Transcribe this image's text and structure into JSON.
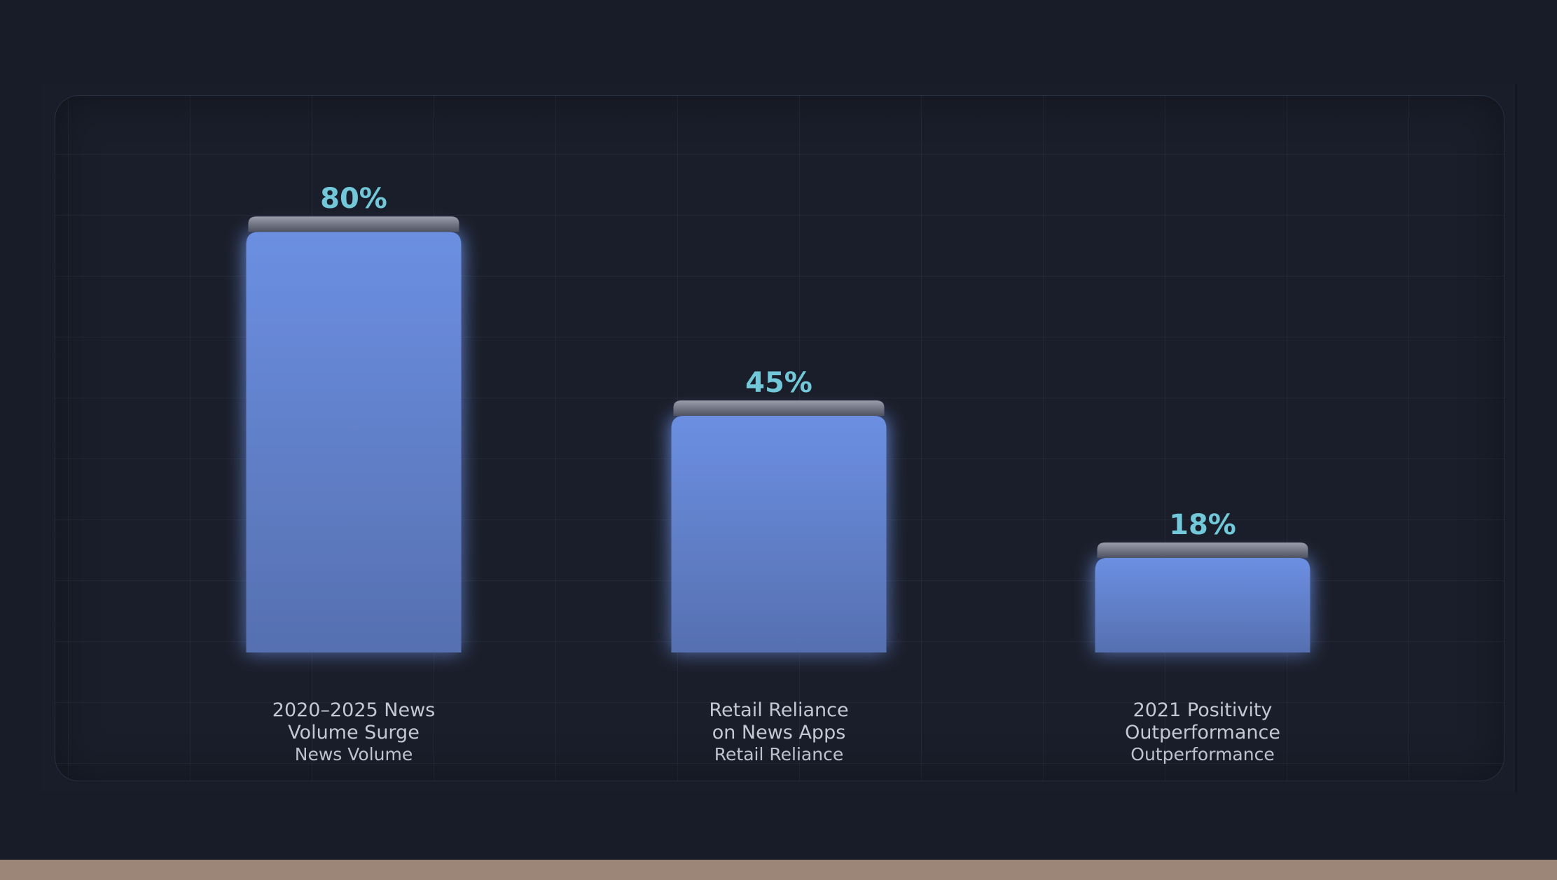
{
  "chart_data": {
    "type": "bar",
    "categories": [
      {
        "line1": "2020–2025 News",
        "line2": "Volume Surge",
        "sub": "News Volume"
      },
      {
        "line1": "Retail Reliance",
        "line2": "on News Apps",
        "sub": "Retail Reliance"
      },
      {
        "line1": "2021 Positivity",
        "line2": "Outperformance",
        "sub": "Outperformance"
      }
    ],
    "values": [
      80,
      45,
      18
    ],
    "value_labels": [
      "80%",
      "45%",
      "18%"
    ],
    "ylim": [
      0,
      100
    ],
    "grid": true,
    "colors": {
      "bar_top": "#6c8fe2",
      "bar_bottom": "#5670b0",
      "cap": "#7d8190",
      "value_text": "#72c8d8",
      "label_text": "#c3c9d3"
    }
  }
}
